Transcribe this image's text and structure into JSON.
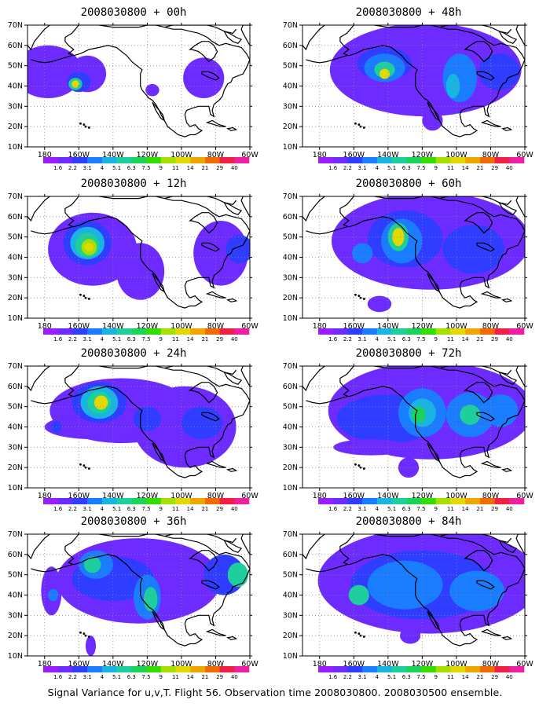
{
  "figure": {
    "footer": "Signal Variance for u,v,T. Flight 56. Observation time 2008030800. 2008030500 ensemble."
  },
  "axes": {
    "lon_labels": [
      "180",
      "160W",
      "140W",
      "120W",
      "100W",
      "80W",
      "60W"
    ],
    "lat_labels": [
      "70N",
      "60N",
      "50N",
      "40N",
      "30N",
      "20N",
      "10N"
    ]
  },
  "colorbar": {
    "levels": [
      "1.6",
      "2.2",
      "3.1",
      "4",
      "5.1",
      "6.3",
      "7.5",
      "9",
      "11",
      "14",
      "21",
      "29",
      "40"
    ],
    "colors": [
      "#9a1eff",
      "#6d2bff",
      "#2e3dff",
      "#1a7cff",
      "#18b4e2",
      "#1ccf9c",
      "#1ad45a",
      "#33dd00",
      "#a6e000",
      "#e3d800",
      "#f0a600",
      "#f26b00",
      "#f02045",
      "#ee1fa0"
    ]
  },
  "panels": [
    {
      "id": "p00",
      "title": "2008030800 + 00h",
      "blobs": [
        {
          "lon": 182,
          "lat": 47,
          "rx": 20,
          "ry": 13,
          "v": 1
        },
        {
          "lon": 205,
          "lat": 46,
          "rx": 11,
          "ry": 9,
          "v": 1
        },
        {
          "lon": 200,
          "lat": 42,
          "rx": 7,
          "ry": 5,
          "v": 2
        },
        {
          "lon": 198,
          "lat": 41,
          "rx": 4,
          "ry": 3,
          "v": 5
        },
        {
          "lon": 198,
          "lat": 41,
          "rx": 2.2,
          "ry": 1.8,
          "v": 9
        },
        {
          "lon": 273,
          "lat": 44,
          "rx": 12,
          "ry": 10,
          "v": 1
        },
        {
          "lon": 243,
          "lat": 38,
          "rx": 4,
          "ry": 3,
          "v": 1
        }
      ]
    },
    {
      "id": "p48",
      "title": "2008030800 + 48h",
      "blobs": [
        {
          "lon": 242,
          "lat": 48,
          "rx": 56,
          "ry": 23,
          "v": 1
        },
        {
          "lon": 218,
          "lat": 51,
          "rx": 16,
          "ry": 8,
          "v": 2
        },
        {
          "lon": 218,
          "lat": 49,
          "rx": 12,
          "ry": 7,
          "v": 3
        },
        {
          "lon": 218,
          "lat": 48,
          "rx": 6,
          "ry": 4,
          "v": 5
        },
        {
          "lon": 218,
          "lat": 46,
          "rx": 3,
          "ry": 2.5,
          "v": 9
        },
        {
          "lon": 262,
          "lat": 44,
          "rx": 10,
          "ry": 12,
          "v": 3
        },
        {
          "lon": 258,
          "lat": 40,
          "rx": 4,
          "ry": 6,
          "v": 4
        },
        {
          "lon": 285,
          "lat": 47,
          "rx": 12,
          "ry": 9,
          "v": 2
        },
        {
          "lon": 246,
          "lat": 23,
          "rx": 6,
          "ry": 5,
          "v": 1
        }
      ]
    },
    {
      "id": "p12",
      "title": "2008030800 + 12h",
      "blobs": [
        {
          "lon": 208,
          "lat": 44,
          "rx": 26,
          "ry": 18,
          "v": 1
        },
        {
          "lon": 236,
          "lat": 33,
          "rx": 14,
          "ry": 14,
          "v": 1
        },
        {
          "lon": 283,
          "lat": 42,
          "rx": 16,
          "ry": 16,
          "v": 1
        },
        {
          "lon": 205,
          "lat": 47,
          "rx": 14,
          "ry": 11,
          "v": 2
        },
        {
          "lon": 205,
          "lat": 47,
          "rx": 10,
          "ry": 8,
          "v": 4
        },
        {
          "lon": 205,
          "lat": 46,
          "rx": 7,
          "ry": 6,
          "v": 5
        },
        {
          "lon": 206,
          "lat": 45,
          "rx": 4.5,
          "ry": 4,
          "v": 8
        },
        {
          "lon": 206,
          "lat": 45,
          "rx": 2.5,
          "ry": 2,
          "v": 9
        },
        {
          "lon": 294,
          "lat": 44,
          "rx": 8,
          "ry": 7,
          "v": 2
        },
        {
          "lon": 185,
          "lat": 39,
          "rx": 2,
          "ry": 1.5,
          "v": 1
        }
      ]
    },
    {
      "id": "p60",
      "title": "2008030800 + 60h",
      "blobs": [
        {
          "lon": 245,
          "lat": 48,
          "rx": 58,
          "ry": 24,
          "v": 1
        },
        {
          "lon": 230,
          "lat": 49,
          "rx": 22,
          "ry": 14,
          "v": 2
        },
        {
          "lon": 228,
          "lat": 48,
          "rx": 12,
          "ry": 11,
          "v": 3
        },
        {
          "lon": 226,
          "lat": 50,
          "rx": 6,
          "ry": 7,
          "v": 5
        },
        {
          "lon": 226,
          "lat": 50,
          "rx": 3.5,
          "ry": 4.5,
          "v": 9
        },
        {
          "lon": 270,
          "lat": 44,
          "rx": 18,
          "ry": 12,
          "v": 2
        },
        {
          "lon": 205,
          "lat": 42,
          "rx": 6,
          "ry": 5,
          "v": 3
        },
        {
          "lon": 215,
          "lat": 17,
          "rx": 7,
          "ry": 4,
          "v": 1
        }
      ]
    },
    {
      "id": "p24",
      "title": "2008030800 + 24h",
      "blobs": [
        {
          "lon": 225,
          "lat": 48,
          "rx": 42,
          "ry": 16,
          "v": 1
        },
        {
          "lon": 262,
          "lat": 40,
          "rx": 30,
          "ry": 20,
          "v": 1
        },
        {
          "lon": 208,
          "lat": 40,
          "rx": 28,
          "ry": 6,
          "v": 1
        },
        {
          "lon": 212,
          "lat": 52,
          "rx": 16,
          "ry": 10,
          "v": 2
        },
        {
          "lon": 212,
          "lat": 52,
          "rx": 11,
          "ry": 8,
          "v": 4
        },
        {
          "lon": 212,
          "lat": 52,
          "rx": 7,
          "ry": 5.5,
          "v": 5
        },
        {
          "lon": 213,
          "lat": 52,
          "rx": 4,
          "ry": 3.5,
          "v": 9
        },
        {
          "lon": 240,
          "lat": 44,
          "rx": 8,
          "ry": 6,
          "v": 2
        },
        {
          "lon": 272,
          "lat": 42,
          "rx": 12,
          "ry": 8,
          "v": 2
        },
        {
          "lon": 187,
          "lat": 40,
          "rx": 3,
          "ry": 3,
          "v": 2
        }
      ]
    },
    {
      "id": "p72",
      "title": "2008030800 + 72h",
      "blobs": [
        {
          "lon": 245,
          "lat": 48,
          "rx": 60,
          "ry": 24,
          "v": 1
        },
        {
          "lon": 220,
          "lat": 44,
          "rx": 30,
          "ry": 12,
          "v": 2
        },
        {
          "lon": 240,
          "lat": 47,
          "rx": 14,
          "ry": 12,
          "v": 3
        },
        {
          "lon": 240,
          "lat": 47,
          "rx": 8,
          "ry": 7,
          "v": 4
        },
        {
          "lon": 238,
          "lat": 46,
          "rx": 4,
          "ry": 4,
          "v": 6
        },
        {
          "lon": 268,
          "lat": 46,
          "rx": 14,
          "ry": 11,
          "v": 3
        },
        {
          "lon": 268,
          "lat": 46,
          "rx": 6,
          "ry": 5,
          "v": 5
        },
        {
          "lon": 286,
          "lat": 48,
          "rx": 10,
          "ry": 8,
          "v": 3
        },
        {
          "lon": 210,
          "lat": 30,
          "rx": 22,
          "ry": 4,
          "v": 1
        },
        {
          "lon": 232,
          "lat": 20,
          "rx": 6,
          "ry": 5,
          "v": 1
        }
      ]
    },
    {
      "id": "p36",
      "title": "2008030800 + 36h",
      "blobs": [
        {
          "lon": 235,
          "lat": 47,
          "rx": 48,
          "ry": 21,
          "v": 1
        },
        {
          "lon": 184,
          "lat": 42,
          "rx": 6,
          "ry": 12,
          "v": 1
        },
        {
          "lon": 220,
          "lat": 48,
          "rx": 24,
          "ry": 11,
          "v": 2
        },
        {
          "lon": 210,
          "lat": 55,
          "rx": 10,
          "ry": 7,
          "v": 3
        },
        {
          "lon": 208,
          "lat": 55,
          "rx": 5,
          "ry": 4,
          "v": 5
        },
        {
          "lon": 240,
          "lat": 39,
          "rx": 8,
          "ry": 11,
          "v": 3
        },
        {
          "lon": 242,
          "lat": 38,
          "rx": 4,
          "ry": 6,
          "v": 5
        },
        {
          "lon": 285,
          "lat": 50,
          "rx": 12,
          "ry": 10,
          "v": 2
        },
        {
          "lon": 293,
          "lat": 50,
          "rx": 6,
          "ry": 6,
          "v": 5
        },
        {
          "lon": 185,
          "lat": 40,
          "rx": 3,
          "ry": 3,
          "v": 3
        },
        {
          "lon": 207,
          "lat": 15,
          "rx": 3,
          "ry": 5,
          "v": 1
        }
      ]
    },
    {
      "id": "p84",
      "title": "2008030800 + 84h",
      "blobs": [
        {
          "lon": 244,
          "lat": 47,
          "rx": 65,
          "ry": 26,
          "v": 1
        },
        {
          "lon": 240,
          "lat": 45,
          "rx": 42,
          "ry": 17,
          "v": 2
        },
        {
          "lon": 230,
          "lat": 45,
          "rx": 22,
          "ry": 12,
          "v": 3
        },
        {
          "lon": 203,
          "lat": 40,
          "rx": 6,
          "ry": 5,
          "v": 5
        },
        {
          "lon": 267,
          "lat": 46,
          "rx": 8,
          "ry": 5,
          "v": 5
        },
        {
          "lon": 272,
          "lat": 42,
          "rx": 16,
          "ry": 10,
          "v": 3
        },
        {
          "lon": 233,
          "lat": 20,
          "rx": 6,
          "ry": 4,
          "v": 1
        }
      ]
    }
  ]
}
